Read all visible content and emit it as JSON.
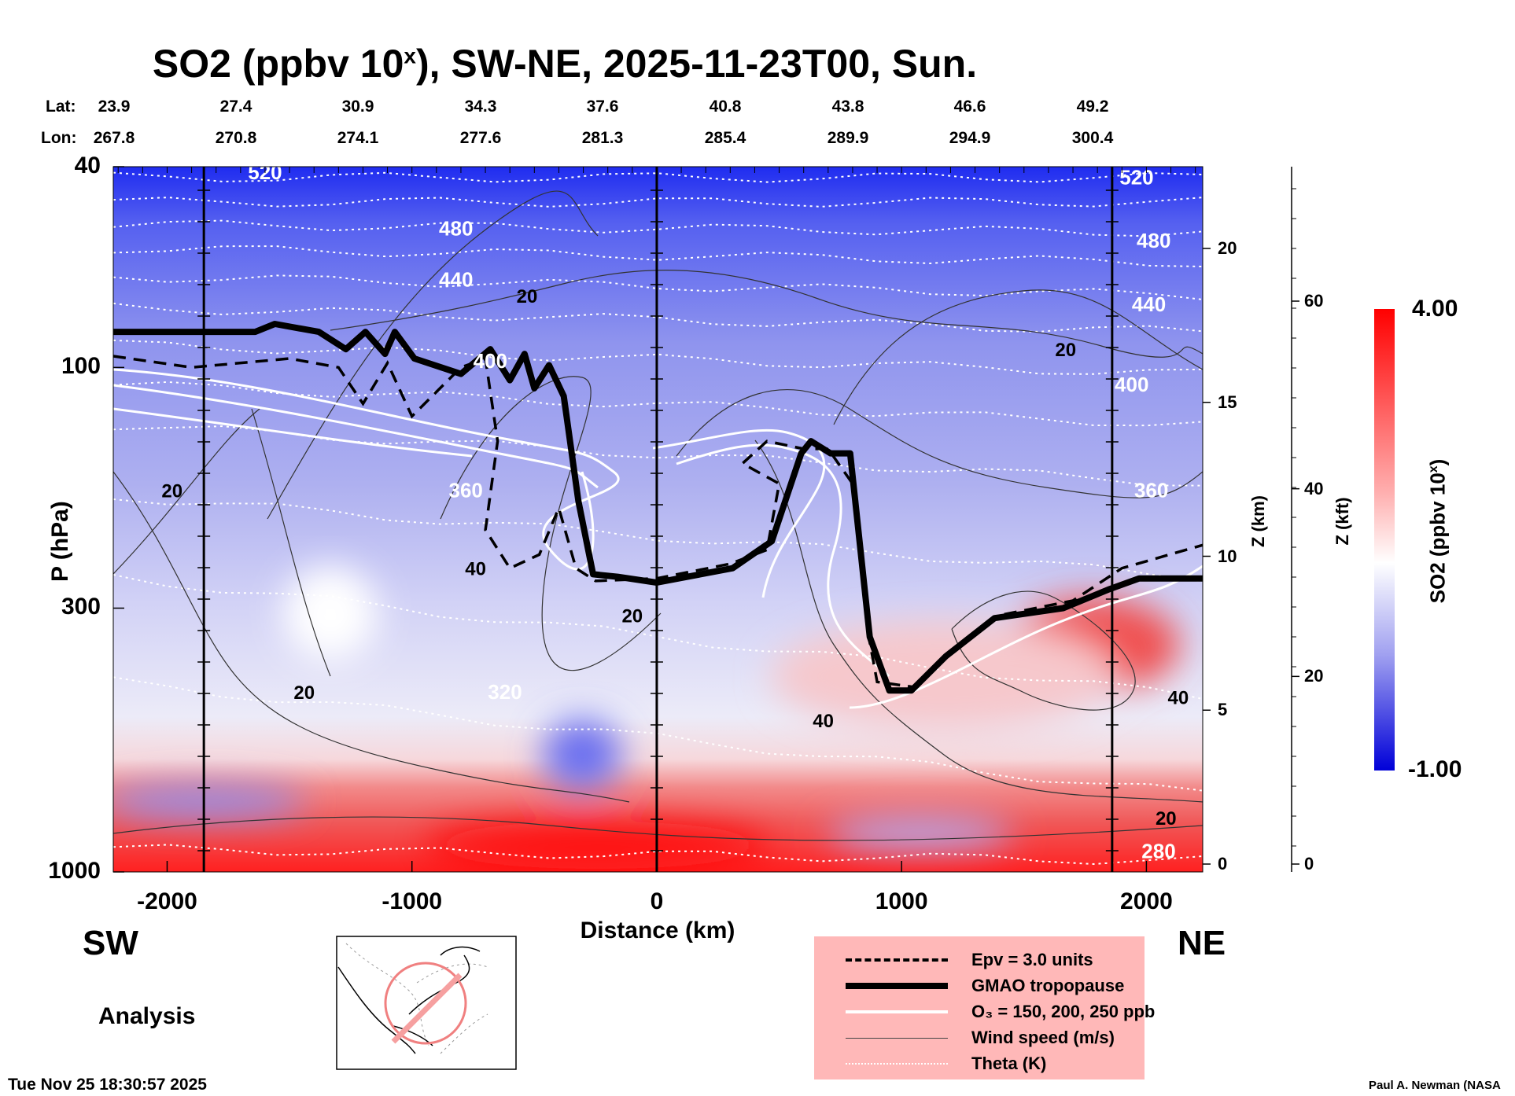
{
  "title_parts": {
    "main": "SO2 (ppbv 10",
    "sup": "x",
    "rest": "), SW-NE, 2025-11-23T00, Sun."
  },
  "geo": {
    "lat_label": "Lat:",
    "lon_label": "Lon:",
    "lat": [
      "23.9",
      "27.4",
      "30.9",
      "34.3",
      "37.6",
      "40.8",
      "43.8",
      "46.6",
      "49.2"
    ],
    "lon": [
      "267.8",
      "270.8",
      "274.1",
      "277.6",
      "281.3",
      "285.4",
      "289.9",
      "294.9",
      "300.4"
    ]
  },
  "labels": {
    "sw": "SW",
    "ne": "NE",
    "analysis": "Analysis",
    "timestamp": "Tue Nov 25 18:30:57 2025",
    "credit": "Paul A. Newman (NASA"
  },
  "legend": {
    "items": [
      {
        "label": "Epv = 3.0 units",
        "style": "dashed"
      },
      {
        "label": "GMAO tropopause",
        "style": "thick"
      },
      {
        "label": "O₃ = 150, 200, 250 ppb",
        "style": "white"
      },
      {
        "label": "Wind speed (m/s)",
        "style": "thin"
      },
      {
        "label": "Theta (K)",
        "style": "dotted"
      }
    ],
    "bg_color": "#ffb8b8"
  },
  "chart_data": {
    "type": "heatmap",
    "title": "SO2 (ppbv 10^x), SW-NE, 2025-11-23T00, Sun.",
    "xlabel": "Distance (km)",
    "ylabel": "P (hPa)",
    "xlim": [
      -2220,
      2230
    ],
    "ylim": [
      1000,
      40
    ],
    "yscale": "log",
    "xticks": [
      "-2000",
      "-1000",
      "0",
      "1000",
      "2000"
    ],
    "xtick_values": [
      -2000,
      -1000,
      0,
      1000,
      2000
    ],
    "yticks": [
      "40",
      "100",
      "300",
      "1000"
    ],
    "ytick_values": [
      40,
      100,
      300,
      1000
    ],
    "z_km": {
      "label": "Z (km)",
      "ticks": [
        "0",
        "5",
        "10",
        "15",
        "20"
      ],
      "values": [
        0,
        5,
        10,
        15,
        20
      ]
    },
    "z_kft": {
      "label": "Z (kft)",
      "ticks": [
        "0",
        "20",
        "40",
        "60"
      ],
      "values": [
        0,
        20,
        40,
        60
      ]
    },
    "colorbar": {
      "label": "SO2 (ppbv 10",
      "label_sup": "x",
      "label_end": ")",
      "min_label": "-1.00",
      "max_label": "4.00",
      "min": -1.0,
      "max": 4.0,
      "low_color": "#0000e0",
      "mid_color": "#ffffff",
      "high_color": "#ff0000"
    },
    "section_markers_km": [
      -1850,
      0,
      1860
    ],
    "tropopause": [
      [
        -2220,
        85
      ],
      [
        -1640,
        85
      ],
      [
        -1560,
        82
      ],
      [
        -1380,
        85
      ],
      [
        -1270,
        92
      ],
      [
        -1190,
        85
      ],
      [
        -1110,
        94
      ],
      [
        -1070,
        85
      ],
      [
        -990,
        96
      ],
      [
        -800,
        103
      ],
      [
        -680,
        92
      ],
      [
        -600,
        106
      ],
      [
        -540,
        94
      ],
      [
        -500,
        110
      ],
      [
        -440,
        99
      ],
      [
        -380,
        114
      ],
      [
        -320,
        184
      ],
      [
        -260,
        257
      ],
      [
        -160,
        260
      ],
      [
        0,
        267
      ],
      [
        310,
        250
      ],
      [
        470,
        221
      ],
      [
        590,
        148
      ],
      [
        630,
        140
      ],
      [
        710,
        148
      ],
      [
        790,
        148
      ],
      [
        870,
        342
      ],
      [
        950,
        437
      ],
      [
        1040,
        437
      ],
      [
        1180,
        374
      ],
      [
        1380,
        314
      ],
      [
        1660,
        300
      ],
      [
        1850,
        275
      ],
      [
        1970,
        262
      ],
      [
        2230,
        262
      ]
    ],
    "epv": [
      [
        -2220,
        95
      ],
      [
        -1900,
        100
      ],
      [
        -1500,
        96
      ],
      [
        -1300,
        100
      ],
      [
        -1200,
        118
      ],
      [
        -1100,
        98
      ],
      [
        -1000,
        125
      ],
      [
        -800,
        100
      ],
      [
        -700,
        96
      ],
      [
        -650,
        140
      ],
      [
        -700,
        210
      ],
      [
        -600,
        250
      ],
      [
        -480,
        235
      ],
      [
        -400,
        190
      ],
      [
        -330,
        250
      ],
      [
        -250,
        265
      ],
      [
        0,
        262
      ],
      [
        300,
        245
      ],
      [
        450,
        230
      ],
      [
        500,
        170
      ],
      [
        350,
        155
      ],
      [
        450,
        140
      ],
      [
        600,
        145
      ],
      [
        700,
        145
      ],
      [
        800,
        170
      ],
      [
        860,
        330
      ],
      [
        900,
        420
      ],
      [
        1050,
        430
      ],
      [
        1200,
        370
      ],
      [
        1400,
        310
      ],
      [
        1700,
        290
      ],
      [
        1900,
        250
      ],
      [
        2230,
        225
      ]
    ],
    "theta_labels": [
      {
        "text": "520",
        "km": -1600,
        "p": 41
      },
      {
        "text": "480",
        "km": -820,
        "p": 53
      },
      {
        "text": "440",
        "km": -820,
        "p": 67
      },
      {
        "text": "400",
        "km": -680,
        "p": 97
      },
      {
        "text": "360",
        "km": -780,
        "p": 175
      },
      {
        "text": "320",
        "km": -620,
        "p": 440
      },
      {
        "text": "520",
        "km": 1960,
        "p": 42
      },
      {
        "text": "480",
        "km": 2030,
        "p": 56
      },
      {
        "text": "440",
        "km": 2010,
        "p": 75
      },
      {
        "text": "400",
        "km": 1940,
        "p": 108
      },
      {
        "text": "360",
        "km": 2020,
        "p": 175
      },
      {
        "text": "280",
        "km": 2050,
        "p": 910
      }
    ],
    "theta_levels": [
      {
        "theta": 520,
        "p_left": 42,
        "p_right": 42
      },
      {
        "theta": 500,
        "p_left": 47,
        "p_right": 47
      },
      {
        "theta": 480,
        "p_left": 52,
        "p_right": 54
      },
      {
        "theta": 460,
        "p_left": 58,
        "p_right": 62
      },
      {
        "theta": 440,
        "p_left": 66,
        "p_right": 72
      },
      {
        "theta": 420,
        "p_left": 76,
        "p_right": 85
      },
      {
        "theta": 400,
        "p_left": 90,
        "p_right": 103
      },
      {
        "theta": 380,
        "p_left": 108,
        "p_right": 130
      },
      {
        "theta": 360,
        "p_left": 130,
        "p_right": 170
      },
      {
        "theta": 340,
        "p_left": 180,
        "p_right": 260
      },
      {
        "theta": 320,
        "p_left": 260,
        "p_right": 450
      },
      {
        "theta": 300,
        "p_left": 420,
        "p_right": 700
      },
      {
        "theta": 280,
        "p_left": 900,
        "p_right": 950
      }
    ],
    "wind_labels": [
      {
        "text": "20",
        "km": -1980,
        "p": 175
      },
      {
        "text": "20",
        "km": -530,
        "p": 72
      },
      {
        "text": "20",
        "km": 1670,
        "p": 92
      },
      {
        "text": "40",
        "km": -740,
        "p": 250
      },
      {
        "text": "20",
        "km": -1440,
        "p": 440
      },
      {
        "text": "20",
        "km": -100,
        "p": 310
      },
      {
        "text": "40",
        "km": 680,
        "p": 500
      },
      {
        "text": "40",
        "km": 2130,
        "p": 450
      },
      {
        "text": "20",
        "km": 2080,
        "p": 780
      }
    ]
  }
}
